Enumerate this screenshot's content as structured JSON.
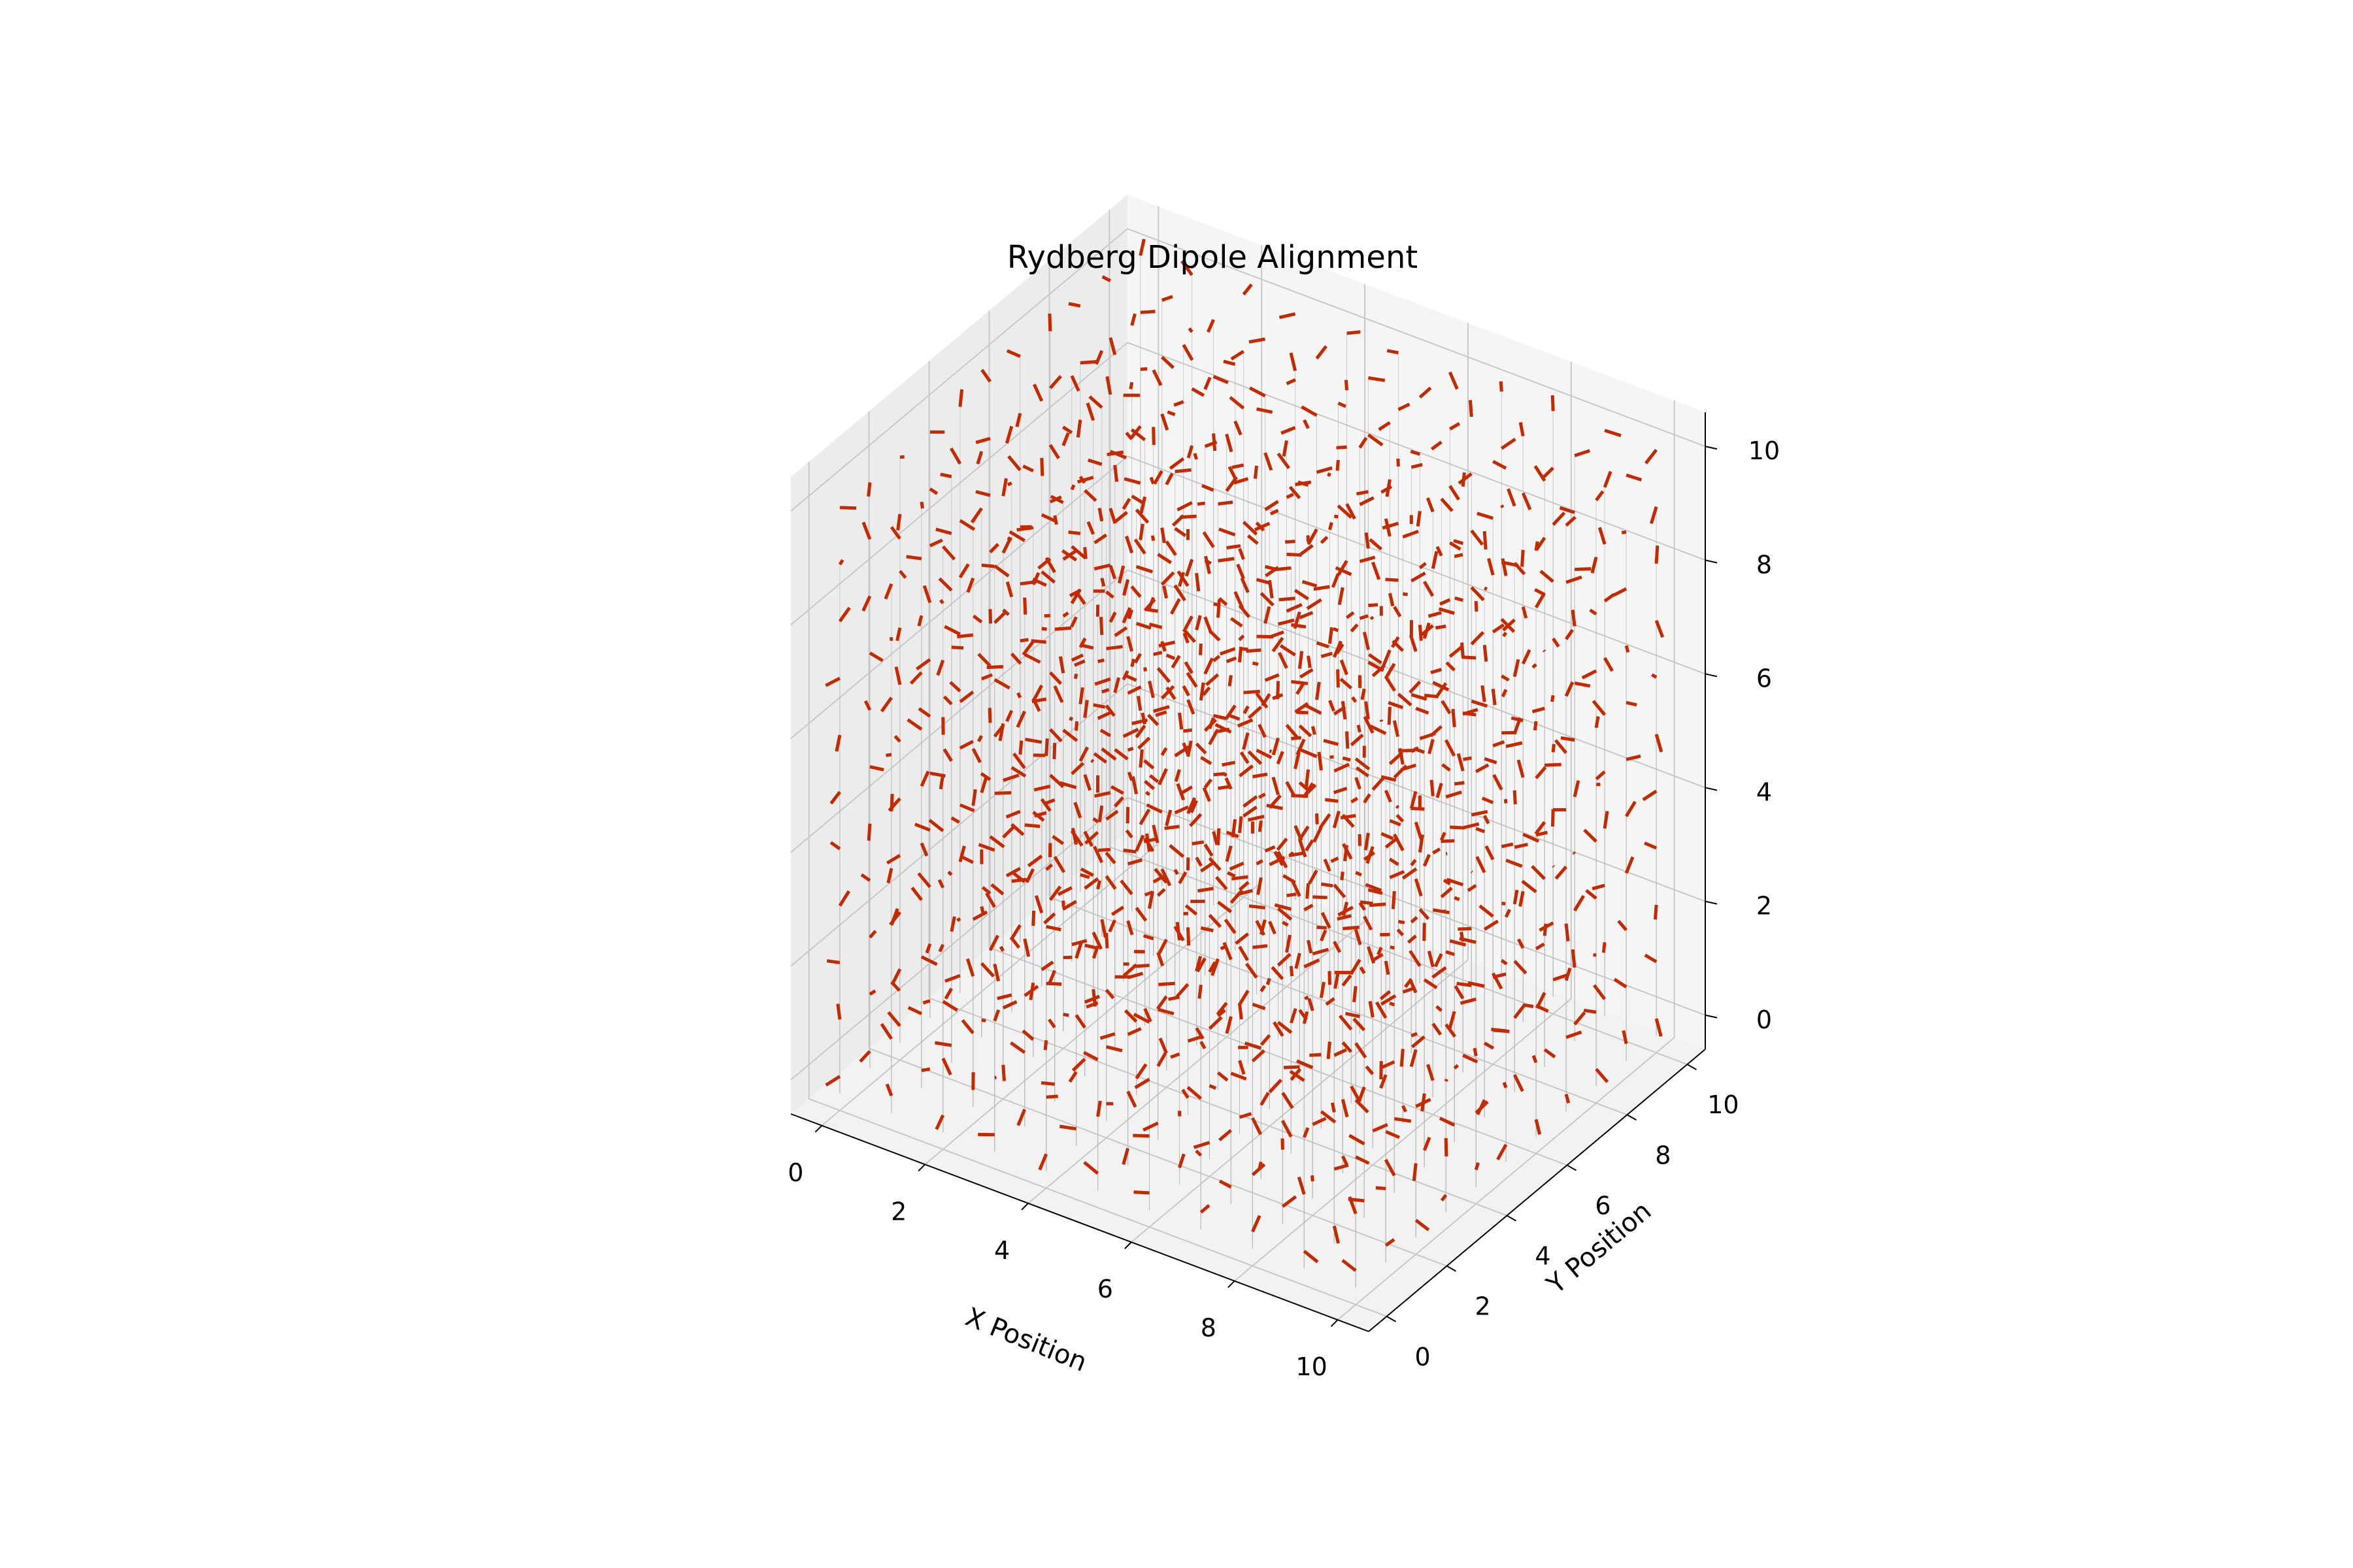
{
  "chart_data": {
    "type": "quiver3d",
    "title": "Rydberg Dipole Alignment",
    "xlabel": "X Position",
    "ylabel": "Y Position",
    "zlabel": "",
    "xlim": [
      -0.6,
      10.6
    ],
    "ylim": [
      -0.6,
      10.6
    ],
    "zlim": [
      -0.6,
      10.6
    ],
    "xticks": [
      "0",
      "2",
      "4",
      "6",
      "8",
      "10"
    ],
    "yticks": [
      "0",
      "2",
      "4",
      "6",
      "8",
      "10"
    ],
    "zticks": [
      "0",
      "2",
      "4",
      "6",
      "8",
      "10"
    ],
    "grid": true,
    "lattice": {
      "x_range": [
        0,
        10
      ],
      "y_range": [
        0,
        10
      ],
      "z_range": [
        0,
        10
      ],
      "points_per_axis": 11
    },
    "dipole_color": "#c42a00",
    "stem_color": "#bbbbbb",
    "pane_color": "#f2f2f2"
  }
}
